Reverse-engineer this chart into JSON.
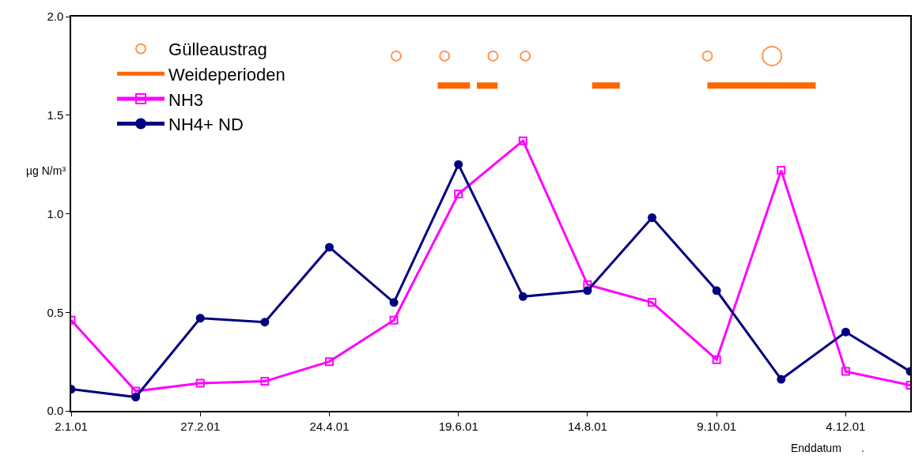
{
  "chart_data": {
    "type": "line",
    "ylabel": "µg N/m³",
    "xlabel": "Enddatum",
    "annotations": [
      "."
    ],
    "x": [
      "2001-01-02",
      "2001-01-30",
      "2001-02-27",
      "2001-03-27",
      "2001-04-24",
      "2001-05-22",
      "2001-06-19",
      "2001-07-17",
      "2001-08-14",
      "2001-09-11",
      "2001-10-09",
      "2001-11-06",
      "2001-12-04",
      "2002-01-01"
    ],
    "xlim": [
      "2001-01-02",
      "2002-01-01"
    ],
    "xticks": [
      {
        "value": "2001-01-02",
        "label": "2.1.01"
      },
      {
        "value": "2001-02-27",
        "label": "27.2.01"
      },
      {
        "value": "2001-04-24",
        "label": "24.4.01"
      },
      {
        "value": "2001-06-19",
        "label": "19.6.01"
      },
      {
        "value": "2001-08-14",
        "label": "14.8.01"
      },
      {
        "value": "2001-10-09",
        "label": "9.10.01"
      },
      {
        "value": "2001-12-04",
        "label": "4.12.01"
      }
    ],
    "ylim": [
      0,
      2
    ],
    "yticks": [
      {
        "value": 0,
        "label": "0.0"
      },
      {
        "value": 0.5,
        "label": "0.5"
      },
      {
        "value": 1,
        "label": "1.0"
      },
      {
        "value": 1.5,
        "label": "1.5"
      },
      {
        "value": 2,
        "label": "2.0"
      }
    ],
    "legend": "top left",
    "series": [
      {
        "name": "Gülleaustrag",
        "type": "bubble",
        "color": "#ff6600",
        "marker": "circle",
        "x": [
          "2001-05-23",
          "2001-06-13",
          "2001-07-04",
          "2001-07-18",
          "2001-10-05",
          "2001-11-02"
        ],
        "values": [
          1.8,
          1.8,
          1.8,
          1.8,
          1.8,
          1.8
        ],
        "sizes": [
          0.25,
          0.25,
          0.25,
          0.25,
          0.25,
          1
        ]
      },
      {
        "name": "Weideperioden",
        "type": "line",
        "color": "#ff6600",
        "marker": "none",
        "x": [
          "2001-06-10",
          "2001-06-24",
          "2001-06-25",
          "2001-06-27",
          "2001-07-06",
          "2001-07-07",
          "2001-08-16",
          "2001-08-28",
          "2001-08-29",
          "2001-10-05",
          "2001-11-21"
        ],
        "values": [
          1.65,
          1.65,
          null,
          1.65,
          1.65,
          null,
          1.65,
          1.65,
          null,
          1.65,
          1.65
        ]
      },
      {
        "name": "NH3",
        "color": "#ff00ff",
        "marker": "square",
        "values": [
          0.46,
          0.1,
          0.14,
          0.15,
          0.25,
          0.46,
          1.1,
          1.37,
          0.64,
          0.55,
          0.26,
          1.22,
          0.2,
          0.13
        ]
      },
      {
        "name": "NH4+ ND",
        "color": "#000080",
        "marker": "circle",
        "values": [
          0.11,
          0.07,
          0.47,
          0.45,
          0.83,
          0.55,
          1.25,
          0.58,
          0.61,
          0.98,
          0.61,
          0.16,
          0.4,
          0.2
        ]
      }
    ]
  }
}
